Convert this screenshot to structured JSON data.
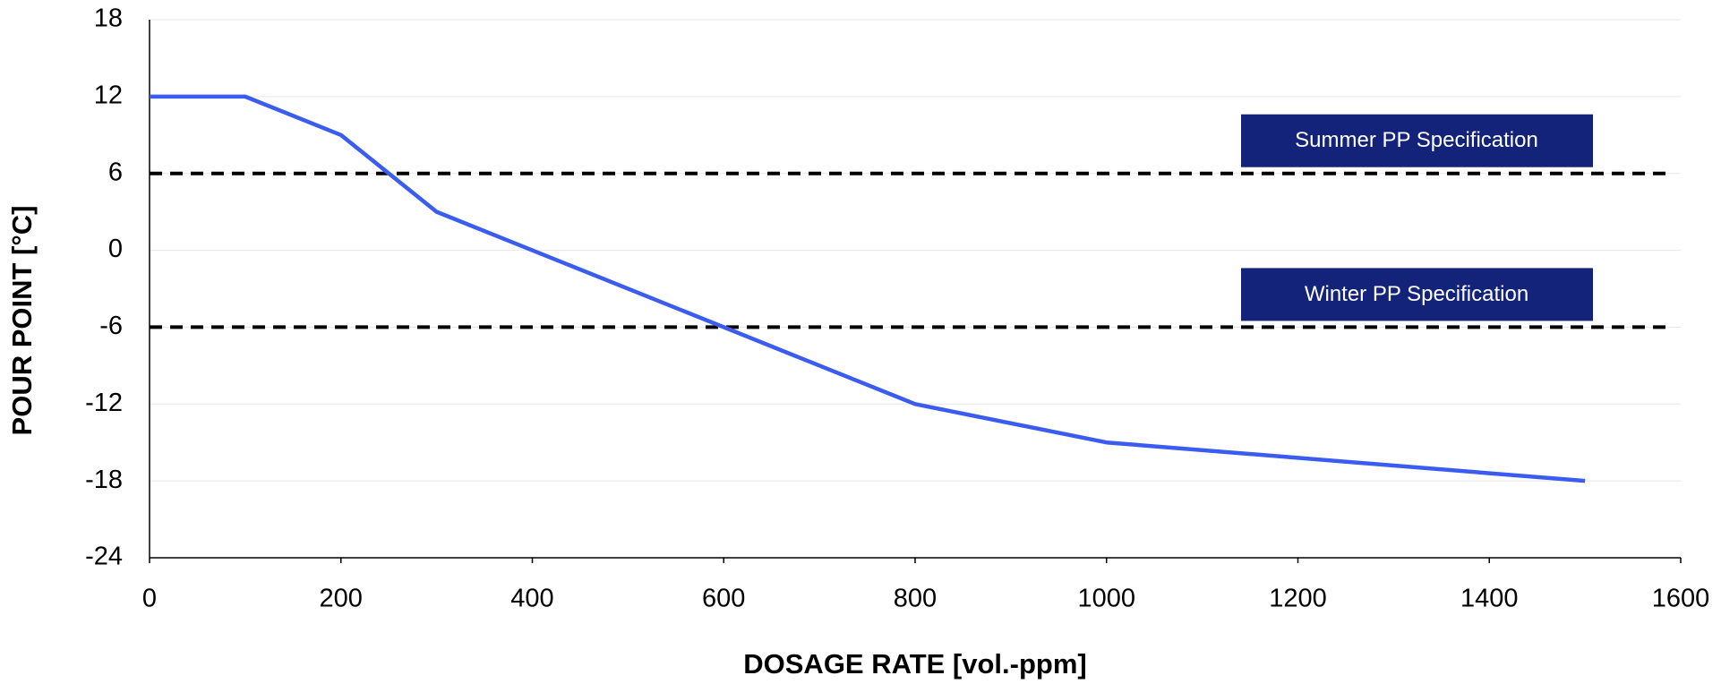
{
  "chart_data": {
    "type": "line",
    "x_label": "DOSAGE RATE [vol.-ppm]",
    "y_label": "POUR POINT [°C]",
    "x": [
      0,
      100,
      200,
      300,
      800,
      1000,
      1500
    ],
    "series": [
      {
        "color": "#3a5cf0",
        "values": [
          12,
          12,
          9,
          3,
          -12,
          -15,
          -18
        ]
      }
    ],
    "xlim": [
      0,
      1600
    ],
    "xticks": [
      0,
      200,
      400,
      600,
      800,
      1000,
      1200,
      1400,
      1600
    ],
    "ylim": [
      -24,
      18
    ],
    "yticks": [
      -24,
      -18,
      -12,
      -6,
      0,
      6,
      12,
      18
    ],
    "grid": true,
    "reference_lines": [
      {
        "value": 6,
        "label": "Summer PP Specification",
        "color": "#000000"
      },
      {
        "value": -6,
        "label": "Winter PP Specification",
        "color": "#000000"
      }
    ],
    "label_box_color": "#13237a"
  }
}
